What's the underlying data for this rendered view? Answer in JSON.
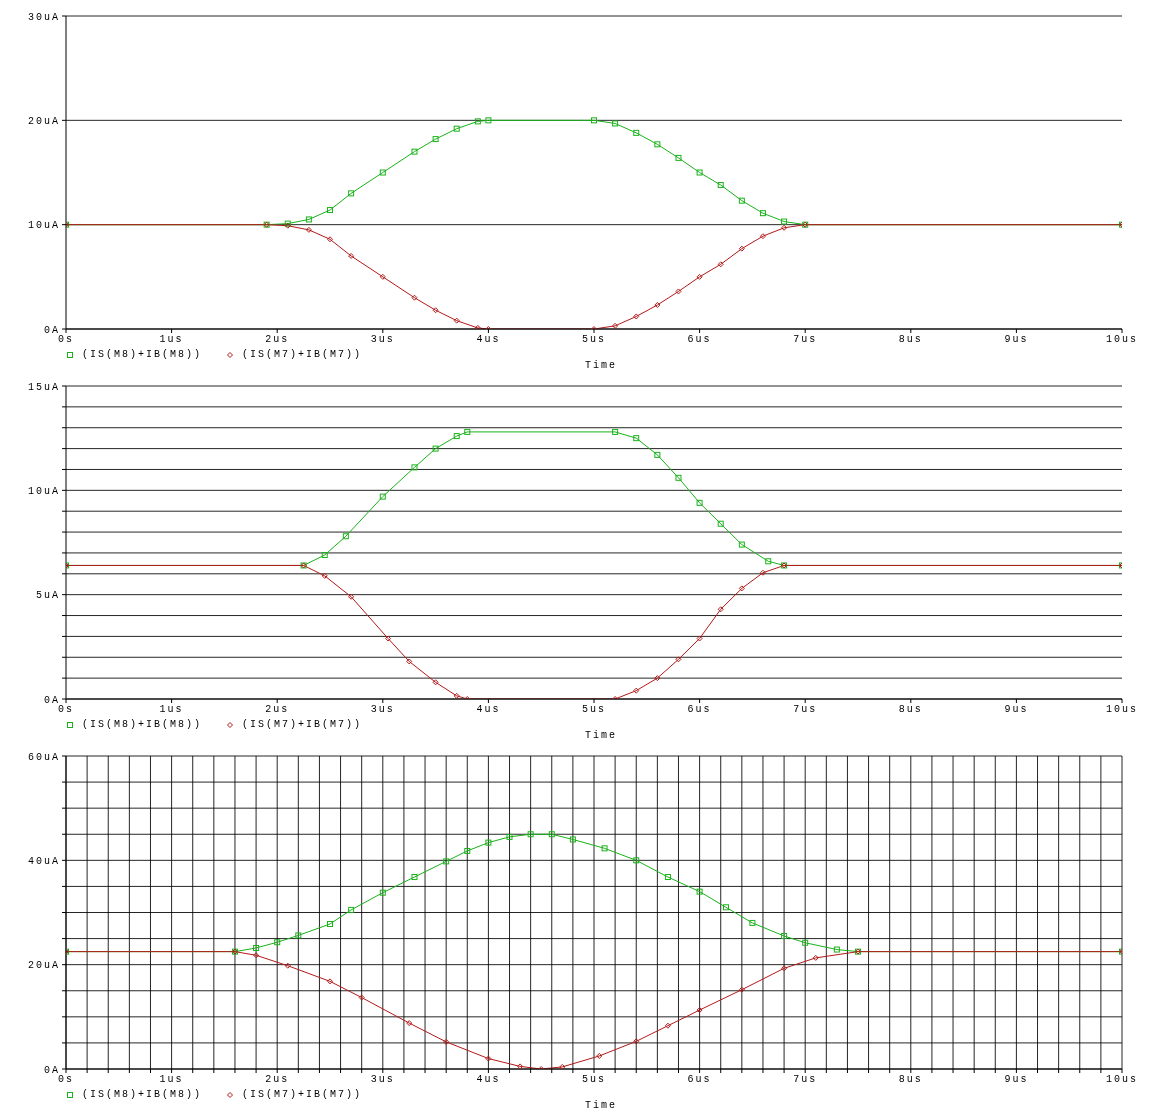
{
  "chart_data": [
    {
      "type": "line",
      "xlabel": "Time",
      "legend": "bottom left",
      "grid": "y",
      "line_style": "solid",
      "xlim": [
        0,
        10
      ],
      "ylim": [
        0,
        30
      ],
      "xticks": [
        {
          "value": 0,
          "label": "0s"
        },
        {
          "value": 1,
          "label": "1us"
        },
        {
          "value": 2,
          "label": "2us"
        },
        {
          "value": 3,
          "label": "3us"
        },
        {
          "value": 4,
          "label": "4us"
        },
        {
          "value": 5,
          "label": "5us"
        },
        {
          "value": 6,
          "label": "6us"
        },
        {
          "value": 7,
          "label": "7us"
        },
        {
          "value": 8,
          "label": "8us"
        },
        {
          "value": 9,
          "label": "9us"
        },
        {
          "value": 10,
          "label": "10us"
        }
      ],
      "yticks": [
        {
          "value": 0,
          "label": "0A"
        },
        {
          "value": 10,
          "label": "10uA"
        },
        {
          "value": 20,
          "label": "20uA"
        },
        {
          "value": 30,
          "label": "30uA"
        }
      ],
      "series": [
        {
          "name": "(IS(M8)+IB(M8))",
          "color": "#19b219",
          "marker": "square",
          "x": [
            0,
            1.9,
            2.1,
            2.3,
            2.5,
            2.7,
            3.0,
            3.3,
            3.5,
            3.7,
            3.9,
            4.0,
            5.0,
            5.2,
            5.4,
            5.6,
            5.8,
            6.0,
            6.2,
            6.4,
            6.6,
            6.8,
            7.0,
            10
          ],
          "values": [
            10,
            10,
            10.1,
            10.5,
            11.4,
            13,
            15,
            17,
            18.2,
            19.2,
            19.9,
            20,
            20,
            19.7,
            18.8,
            17.7,
            16.4,
            15.0,
            13.8,
            12.3,
            11.1,
            10.3,
            10,
            10
          ]
        },
        {
          "name": "(IS(M7)+IB(M7))",
          "color": "#b41919",
          "marker": "diamond",
          "x": [
            0,
            1.9,
            2.1,
            2.3,
            2.5,
            2.7,
            3.0,
            3.3,
            3.5,
            3.7,
            3.9,
            4.0,
            5.0,
            5.2,
            5.4,
            5.6,
            5.8,
            6.0,
            6.2,
            6.4,
            6.6,
            6.8,
            7.0,
            10
          ],
          "values": [
            10,
            10,
            9.9,
            9.5,
            8.6,
            7,
            5,
            3,
            1.8,
            0.8,
            0.1,
            0,
            0,
            0.3,
            1.2,
            2.3,
            3.6,
            5.0,
            6.2,
            7.7,
            8.9,
            9.7,
            10,
            10
          ]
        }
      ]
    },
    {
      "type": "line",
      "xlabel": "Time",
      "legend": "bottom left",
      "grid": "y",
      "line_style": "solid",
      "xlim": [
        0,
        10
      ],
      "ylim": [
        0,
        15
      ],
      "xticks": [
        {
          "value": 0,
          "label": "0s"
        },
        {
          "value": 1,
          "label": "1us"
        },
        {
          "value": 2,
          "label": "2us"
        },
        {
          "value": 3,
          "label": "3us"
        },
        {
          "value": 4,
          "label": "4us"
        },
        {
          "value": 5,
          "label": "5us"
        },
        {
          "value": 6,
          "label": "6us"
        },
        {
          "value": 7,
          "label": "7us"
        },
        {
          "value": 8,
          "label": "8us"
        },
        {
          "value": 9,
          "label": "9us"
        },
        {
          "value": 10,
          "label": "10us"
        }
      ],
      "yticks": [
        {
          "value": 0,
          "label": "0A"
        },
        {
          "value": 1,
          "label": null
        },
        {
          "value": 2,
          "label": null
        },
        {
          "value": 3,
          "label": null
        },
        {
          "value": 4,
          "label": null
        },
        {
          "value": 5,
          "label": "5uA"
        },
        {
          "value": 6,
          "label": null
        },
        {
          "value": 7,
          "label": null
        },
        {
          "value": 8,
          "label": null
        },
        {
          "value": 9,
          "label": null
        },
        {
          "value": 10,
          "label": "10uA"
        },
        {
          "value": 11,
          "label": null
        },
        {
          "value": 12,
          "label": null
        },
        {
          "value": 13,
          "label": null
        },
        {
          "value": 14,
          "label": null
        },
        {
          "value": 15,
          "label": "15uA"
        }
      ],
      "series": [
        {
          "name": "(IS(M8)+IB(M8))",
          "color": "#19b219",
          "marker": "square",
          "x": [
            0,
            2.25,
            2.45,
            2.65,
            3.0,
            3.3,
            3.5,
            3.7,
            3.8,
            5.2,
            5.4,
            5.6,
            5.8,
            6.0,
            6.2,
            6.4,
            6.65,
            6.8,
            10
          ],
          "values": [
            6.4,
            6.4,
            6.9,
            7.8,
            9.7,
            11.1,
            12,
            12.6,
            12.8,
            12.8,
            12.5,
            11.7,
            10.6,
            9.4,
            8.4,
            7.4,
            6.6,
            6.4,
            6.4
          ]
        },
        {
          "name": "(IS(M7)+IB(M7))",
          "color": "#b41919",
          "marker": "diamond",
          "x": [
            0,
            2.25,
            2.45,
            2.7,
            3.05,
            3.25,
            3.5,
            3.7,
            3.8,
            5.2,
            5.4,
            5.6,
            5.8,
            6.0,
            6.2,
            6.4,
            6.6,
            6.8,
            10
          ],
          "values": [
            6.4,
            6.4,
            5.9,
            4.9,
            2.9,
            1.8,
            0.8,
            0.15,
            0,
            0,
            0.4,
            1.0,
            1.9,
            2.9,
            4.3,
            5.3,
            6.05,
            6.4,
            6.4
          ]
        }
      ]
    },
    {
      "type": "line",
      "xlabel": "Time",
      "legend": "bottom left",
      "grid": true,
      "line_style": "solid",
      "xlim": [
        0,
        10
      ],
      "ylim": [
        0,
        60
      ],
      "xticks": [
        {
          "value": 0,
          "label": "0s"
        },
        {
          "value": 0.2,
          "label": null
        },
        {
          "value": 0.4,
          "label": null
        },
        {
          "value": 0.6,
          "label": null
        },
        {
          "value": 0.8,
          "label": null
        },
        {
          "value": 1,
          "label": "1us"
        },
        {
          "value": 1.2,
          "label": null
        },
        {
          "value": 1.4,
          "label": null
        },
        {
          "value": 1.6,
          "label": null
        },
        {
          "value": 1.8,
          "label": null
        },
        {
          "value": 2,
          "label": "2us"
        },
        {
          "value": 2.2,
          "label": null
        },
        {
          "value": 2.4,
          "label": null
        },
        {
          "value": 2.6,
          "label": null
        },
        {
          "value": 2.8,
          "label": null
        },
        {
          "value": 3,
          "label": "3us"
        },
        {
          "value": 3.2,
          "label": null
        },
        {
          "value": 3.4,
          "label": null
        },
        {
          "value": 3.6,
          "label": null
        },
        {
          "value": 3.8,
          "label": null
        },
        {
          "value": 4,
          "label": "4us"
        },
        {
          "value": 4.2,
          "label": null
        },
        {
          "value": 4.4,
          "label": null
        },
        {
          "value": 4.6,
          "label": null
        },
        {
          "value": 4.8,
          "label": null
        },
        {
          "value": 5,
          "label": "5us"
        },
        {
          "value": 5.2,
          "label": null
        },
        {
          "value": 5.4,
          "label": null
        },
        {
          "value": 5.6,
          "label": null
        },
        {
          "value": 5.8,
          "label": null
        },
        {
          "value": 6,
          "label": "6us"
        },
        {
          "value": 6.2,
          "label": null
        },
        {
          "value": 6.4,
          "label": null
        },
        {
          "value": 6.6,
          "label": null
        },
        {
          "value": 6.8,
          "label": null
        },
        {
          "value": 7,
          "label": "7us"
        },
        {
          "value": 7.2,
          "label": null
        },
        {
          "value": 7.4,
          "label": null
        },
        {
          "value": 7.6,
          "label": null
        },
        {
          "value": 7.8,
          "label": null
        },
        {
          "value": 8,
          "label": "8us"
        },
        {
          "value": 8.2,
          "label": null
        },
        {
          "value": 8.4,
          "label": null
        },
        {
          "value": 8.6,
          "label": null
        },
        {
          "value": 8.8,
          "label": null
        },
        {
          "value": 9,
          "label": "9us"
        },
        {
          "value": 9.2,
          "label": null
        },
        {
          "value": 9.4,
          "label": null
        },
        {
          "value": 9.6,
          "label": null
        },
        {
          "value": 9.8,
          "label": null
        },
        {
          "value": 10,
          "label": "10us"
        }
      ],
      "yticks": [
        {
          "value": 0,
          "label": "0A"
        },
        {
          "value": 5,
          "label": null
        },
        {
          "value": 10,
          "label": null
        },
        {
          "value": 15,
          "label": null
        },
        {
          "value": 20,
          "label": "20uA"
        },
        {
          "value": 25,
          "label": null
        },
        {
          "value": 30,
          "label": null
        },
        {
          "value": 35,
          "label": null
        },
        {
          "value": 40,
          "label": "40uA"
        },
        {
          "value": 45,
          "label": null
        },
        {
          "value": 50,
          "label": null
        },
        {
          "value": 55,
          "label": null
        },
        {
          "value": 60,
          "label": "60uA"
        }
      ],
      "series": [
        {
          "name": "(IS(M8)+IB(M8))",
          "color": "#19b219",
          "marker": "square",
          "x": [
            0,
            1.6,
            1.8,
            2.0,
            2.2,
            2.5,
            2.7,
            3.0,
            3.3,
            3.6,
            3.8,
            4.0,
            4.2,
            4.4,
            4.6,
            4.8,
            5.1,
            5.4,
            5.7,
            6.0,
            6.25,
            6.5,
            6.8,
            7.0,
            7.3,
            7.5,
            10
          ],
          "values": [
            22.5,
            22.5,
            23.2,
            24.3,
            25.6,
            27.8,
            30.5,
            33.8,
            36.8,
            39.8,
            41.8,
            43.4,
            44.5,
            45,
            45,
            44,
            42.3,
            40,
            36.8,
            34,
            31,
            28,
            25.5,
            24.2,
            22.9,
            22.5,
            22.5
          ]
        },
        {
          "name": "(IS(M7)+IB(M7))",
          "color": "#b41919",
          "marker": "diamond",
          "x": [
            0,
            1.6,
            1.8,
            2.1,
            2.5,
            2.8,
            3.25,
            3.6,
            4.0,
            4.3,
            4.5,
            4.7,
            5.05,
            5.4,
            5.7,
            6.0,
            6.4,
            6.8,
            7.1,
            7.5,
            10
          ],
          "values": [
            22.5,
            22.5,
            21.8,
            19.8,
            16.8,
            13.7,
            8.8,
            5.2,
            2.0,
            0.5,
            0,
            0.4,
            2.5,
            5.3,
            8.3,
            11.3,
            15.2,
            19.3,
            21.3,
            22.5,
            22.5
          ]
        }
      ]
    }
  ]
}
